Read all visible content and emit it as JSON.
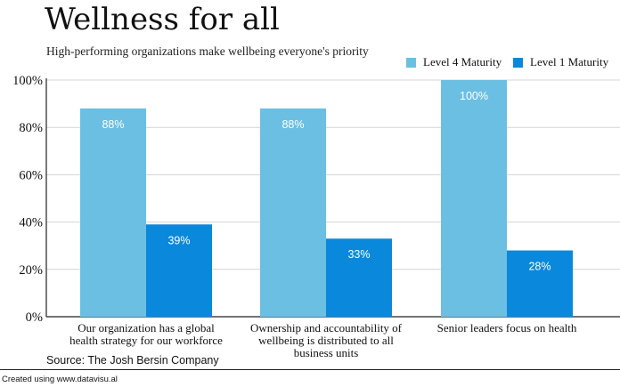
{
  "title": "Wellness for all",
  "subtitle": "High-performing organizations make wellbeing everyone's priority",
  "source": "Source: The Josh Bersin Company",
  "footer": "Created using www.datavisu.al",
  "colors": {
    "level4": "#6BBFE3",
    "level1": "#0A88DB",
    "grid": "#d4d4d4",
    "axis": "#222222"
  },
  "chart_data": {
    "type": "bar",
    "title": "Wellness for all",
    "subtitle": "High-performing organizations make wellbeing everyone's priority",
    "categories": [
      [
        "Our organization has a global",
        "health strategy for our workforce"
      ],
      [
        "Ownership and accountability of",
        "wellbeing is distributed to all",
        "business units"
      ],
      [
        "Senior leaders focus on health"
      ]
    ],
    "series": [
      {
        "name": "Level 4 Maturity",
        "values": [
          88,
          88,
          100
        ],
        "labels": [
          "88%",
          "88%",
          "100%"
        ]
      },
      {
        "name": "Level 1 Maturity",
        "values": [
          39,
          33,
          28
        ],
        "labels": [
          "39%",
          "33%",
          "28%"
        ]
      }
    ],
    "yticks": [
      "0%",
      "20%",
      "40%",
      "60%",
      "80%",
      "100%"
    ],
    "ylim": [
      0,
      100
    ],
    "grid": true,
    "legend": "top-right"
  }
}
